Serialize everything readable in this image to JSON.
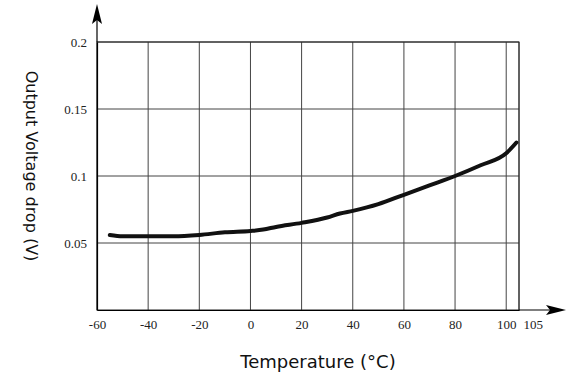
{
  "chart_data": {
    "type": "line",
    "x_label": "Temperature (°C)",
    "y_label": "Output Voltage drop (V)",
    "x": [
      -55,
      -50,
      -40,
      -30,
      -20,
      -10,
      0,
      5,
      10,
      20,
      30,
      35,
      40,
      50,
      60,
      70,
      80,
      90,
      100,
      104
    ],
    "series": [
      {
        "color": "#111111",
        "values": [
          0.056,
          0.055,
          0.055,
          0.055,
          0.056,
          0.058,
          0.059,
          0.06,
          0.062,
          0.065,
          0.069,
          0.072,
          0.074,
          0.079,
          0.086,
          0.093,
          0.1,
          0.108,
          0.117,
          0.125
        ]
      }
    ],
    "xlim": [
      -60,
      105
    ],
    "xticks": [
      -60,
      -40,
      -20,
      0,
      20,
      40,
      60,
      80,
      100,
      105
    ],
    "ylim": [
      0,
      0.2
    ],
    "yticks": [
      0.05,
      0.1,
      0.15,
      0.2
    ],
    "grid": true
  }
}
